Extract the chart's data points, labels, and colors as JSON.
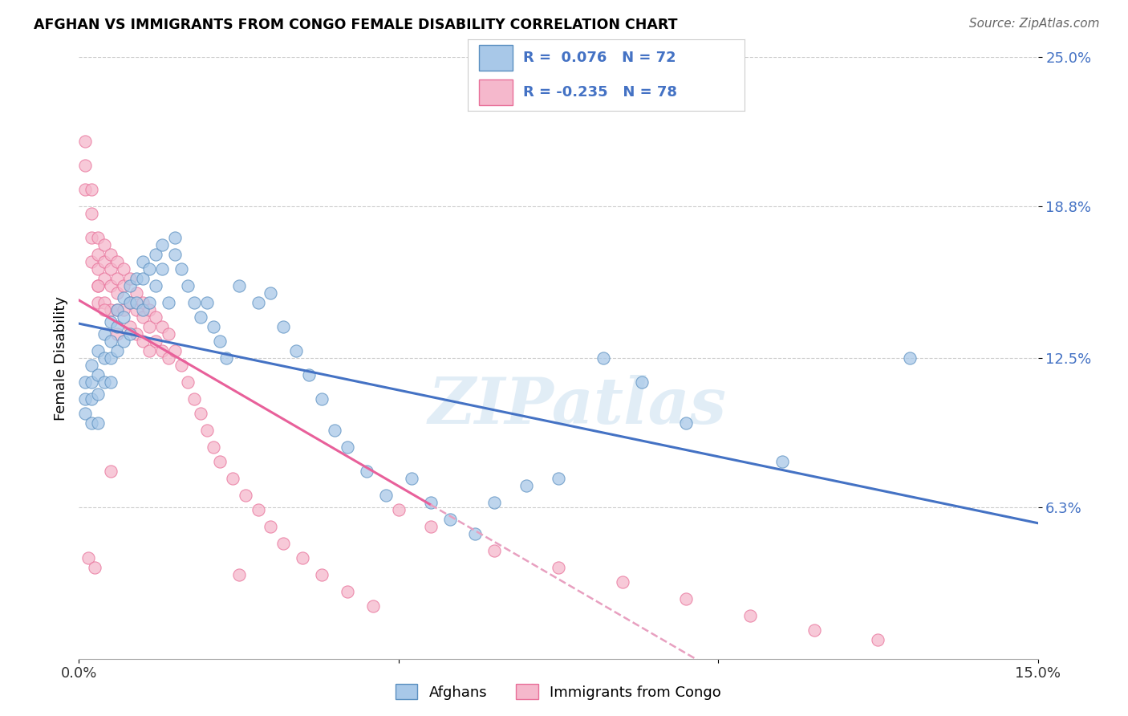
{
  "title": "AFGHAN VS IMMIGRANTS FROM CONGO FEMALE DISABILITY CORRELATION CHART",
  "source": "Source: ZipAtlas.com",
  "ylabel": "Female Disability",
  "x_min": 0.0,
  "x_max": 0.15,
  "y_min": 0.0,
  "y_max": 0.25,
  "y_ticks": [
    0.063,
    0.125,
    0.188,
    0.25
  ],
  "y_tick_labels": [
    "6.3%",
    "12.5%",
    "18.8%",
    "25.0%"
  ],
  "x_ticks": [
    0.0,
    0.05,
    0.1,
    0.15
  ],
  "x_tick_labels": [
    "0.0%",
    "",
    "",
    "15.0%"
  ],
  "afghans_R": 0.076,
  "afghans_N": 72,
  "congo_R": -0.235,
  "congo_N": 78,
  "afghan_color": "#a8c8e8",
  "congo_color": "#f5b8cc",
  "afghan_edge_color": "#5a8fc0",
  "congo_edge_color": "#e87099",
  "afghan_line_color": "#4472c4",
  "congo_line_color": "#e8609a",
  "congo_dash_color": "#e8a0c0",
  "watermark": "ZIPatlas",
  "background_color": "#ffffff",
  "afghans_x": [
    0.001,
    0.001,
    0.001,
    0.002,
    0.002,
    0.002,
    0.002,
    0.003,
    0.003,
    0.003,
    0.003,
    0.004,
    0.004,
    0.004,
    0.005,
    0.005,
    0.005,
    0.005,
    0.006,
    0.006,
    0.006,
    0.007,
    0.007,
    0.007,
    0.008,
    0.008,
    0.008,
    0.009,
    0.009,
    0.01,
    0.01,
    0.01,
    0.011,
    0.011,
    0.012,
    0.012,
    0.013,
    0.013,
    0.014,
    0.015,
    0.015,
    0.016,
    0.017,
    0.018,
    0.019,
    0.02,
    0.021,
    0.022,
    0.023,
    0.025,
    0.028,
    0.03,
    0.032,
    0.034,
    0.036,
    0.038,
    0.04,
    0.042,
    0.045,
    0.048,
    0.052,
    0.055,
    0.058,
    0.062,
    0.065,
    0.07,
    0.075,
    0.082,
    0.088,
    0.095,
    0.11,
    0.13
  ],
  "afghans_y": [
    0.115,
    0.108,
    0.102,
    0.122,
    0.115,
    0.108,
    0.098,
    0.128,
    0.118,
    0.11,
    0.098,
    0.135,
    0.125,
    0.115,
    0.14,
    0.132,
    0.125,
    0.115,
    0.145,
    0.138,
    0.128,
    0.15,
    0.142,
    0.132,
    0.155,
    0.148,
    0.135,
    0.158,
    0.148,
    0.165,
    0.158,
    0.145,
    0.162,
    0.148,
    0.168,
    0.155,
    0.172,
    0.162,
    0.148,
    0.175,
    0.168,
    0.162,
    0.155,
    0.148,
    0.142,
    0.148,
    0.138,
    0.132,
    0.125,
    0.155,
    0.148,
    0.152,
    0.138,
    0.128,
    0.118,
    0.108,
    0.095,
    0.088,
    0.078,
    0.068,
    0.075,
    0.065,
    0.058,
    0.052,
    0.065,
    0.072,
    0.075,
    0.125,
    0.115,
    0.098,
    0.082,
    0.125
  ],
  "congo_x": [
    0.001,
    0.001,
    0.001,
    0.002,
    0.002,
    0.002,
    0.002,
    0.003,
    0.003,
    0.003,
    0.003,
    0.003,
    0.004,
    0.004,
    0.004,
    0.004,
    0.005,
    0.005,
    0.005,
    0.005,
    0.006,
    0.006,
    0.006,
    0.006,
    0.006,
    0.007,
    0.007,
    0.007,
    0.008,
    0.008,
    0.008,
    0.009,
    0.009,
    0.009,
    0.01,
    0.01,
    0.01,
    0.011,
    0.011,
    0.011,
    0.012,
    0.012,
    0.013,
    0.013,
    0.014,
    0.014,
    0.015,
    0.016,
    0.017,
    0.018,
    0.019,
    0.02,
    0.021,
    0.022,
    0.024,
    0.026,
    0.028,
    0.03,
    0.032,
    0.035,
    0.038,
    0.042,
    0.046,
    0.05,
    0.055,
    0.065,
    0.075,
    0.085,
    0.095,
    0.105,
    0.115,
    0.125,
    0.0015,
    0.0025,
    0.003,
    0.004,
    0.005,
    0.025
  ],
  "congo_y": [
    0.215,
    0.205,
    0.195,
    0.195,
    0.185,
    0.175,
    0.165,
    0.175,
    0.168,
    0.162,
    0.155,
    0.148,
    0.172,
    0.165,
    0.158,
    0.148,
    0.168,
    0.162,
    0.155,
    0.145,
    0.165,
    0.158,
    0.152,
    0.145,
    0.135,
    0.162,
    0.155,
    0.145,
    0.158,
    0.148,
    0.138,
    0.152,
    0.145,
    0.135,
    0.148,
    0.142,
    0.132,
    0.145,
    0.138,
    0.128,
    0.142,
    0.132,
    0.138,
    0.128,
    0.135,
    0.125,
    0.128,
    0.122,
    0.115,
    0.108,
    0.102,
    0.095,
    0.088,
    0.082,
    0.075,
    0.068,
    0.062,
    0.055,
    0.048,
    0.042,
    0.035,
    0.028,
    0.022,
    0.062,
    0.055,
    0.045,
    0.038,
    0.032,
    0.025,
    0.018,
    0.012,
    0.008,
    0.042,
    0.038,
    0.155,
    0.145,
    0.078,
    0.035
  ]
}
